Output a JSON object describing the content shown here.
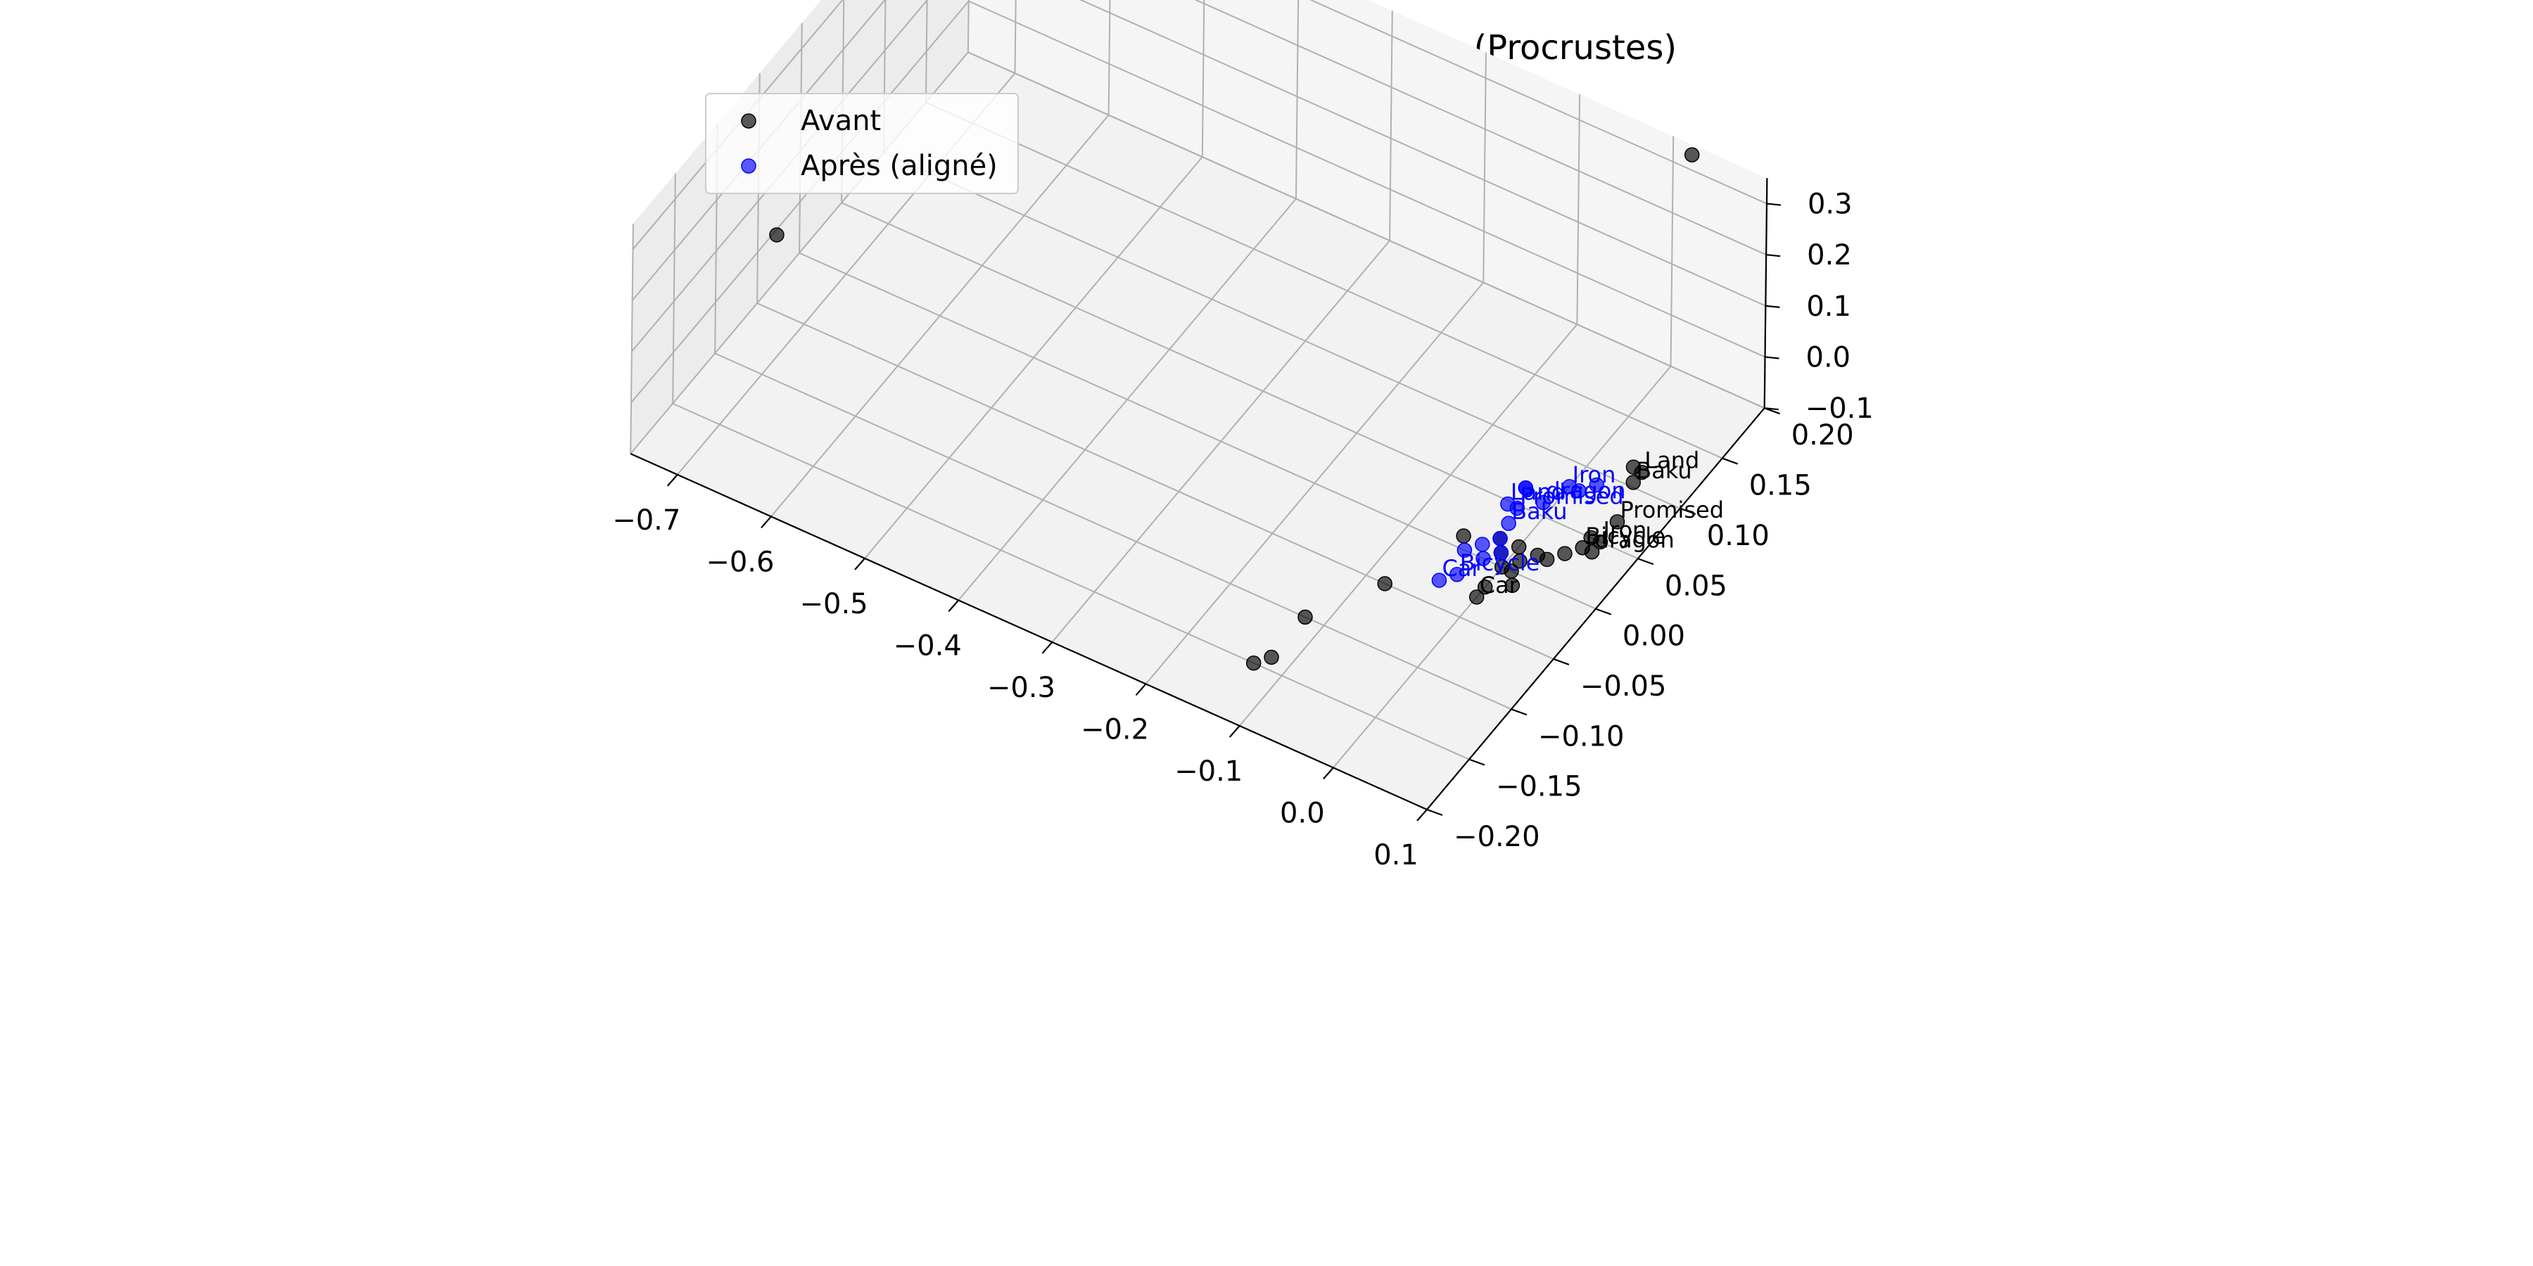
{
  "chart_data": {
    "type": "scatter",
    "projection": "3d",
    "title": "Comparaison globale des structures (Procrustes)",
    "xlabel": "",
    "ylabel": "",
    "zlabel": "",
    "xlim": [
      -0.75,
      0.1
    ],
    "ylim": [
      -0.2,
      0.2
    ],
    "zlim": [
      -0.1,
      0.35
    ],
    "x_ticks": [
      "−0.7",
      "−0.6",
      "−0.5",
      "−0.4",
      "−0.3",
      "−0.2",
      "−0.1",
      "0.0",
      "0.1"
    ],
    "y_ticks": [
      "−0.20",
      "−0.15",
      "−0.10",
      "−0.05",
      "0.00",
      "0.05",
      "0.10",
      "0.15",
      "0.20"
    ],
    "z_ticks": [
      "−0.1",
      "0.0",
      "0.1",
      "0.2",
      "0.3"
    ],
    "grid": true,
    "legend_position": "top-left",
    "series": [
      {
        "name": "Avant",
        "color": "#000000",
        "points": [
          {
            "x": 0.02,
            "y": 0.2,
            "z": 0.33,
            "label": ""
          },
          {
            "x": -0.73,
            "y": -0.05,
            "z": 0.05,
            "label": ""
          },
          {
            "x": 0.05,
            "y": 0.1,
            "z": -0.06,
            "label": ""
          },
          {
            "x": 0.05,
            "y": 0.11,
            "z": -0.09,
            "label": "Land"
          },
          {
            "x": 0.05,
            "y": 0.1,
            "z": -0.09,
            "label": "Baku"
          },
          {
            "x": 0.06,
            "y": 0.07,
            "z": -0.1,
            "label": "Promised"
          },
          {
            "x": 0.06,
            "y": 0.05,
            "z": -0.1,
            "label": "Iron"
          },
          {
            "x": 0.06,
            "y": 0.04,
            "z": -0.1,
            "label": "dragon"
          },
          {
            "x": 0.05,
            "y": 0.04,
            "z": -0.1,
            "label": "Bicycle"
          },
          {
            "x": 0.05,
            "y": 0.05,
            "z": -0.1,
            "label": ""
          },
          {
            "x": 0.04,
            "y": 0.03,
            "z": -0.1,
            "label": ""
          },
          {
            "x": 0.03,
            "y": 0.02,
            "z": -0.1,
            "label": ""
          },
          {
            "x": 0.02,
            "y": 0.02,
            "z": -0.1,
            "label": ""
          },
          {
            "x": 0.01,
            "y": 0.01,
            "z": -0.1,
            "label": ""
          },
          {
            "x": 0.0,
            "y": 0.02,
            "z": -0.1,
            "label": ""
          },
          {
            "x": 0.01,
            "y": 0.0,
            "z": -0.1,
            "label": ""
          },
          {
            "x": 0.0,
            "y": 0.0,
            "z": -0.1,
            "label": ""
          },
          {
            "x": -0.01,
            "y": 0.01,
            "z": -0.1,
            "label": ""
          },
          {
            "x": 0.02,
            "y": -0.01,
            "z": -0.1,
            "label": ""
          },
          {
            "x": 0.0,
            "y": -0.02,
            "z": -0.1,
            "label": ""
          },
          {
            "x": -0.02,
            "y": 0.02,
            "z": -0.1,
            "label": ""
          },
          {
            "x": -0.05,
            "y": 0.01,
            "z": -0.1,
            "label": ""
          },
          {
            "x": 0.0,
            "y": -0.03,
            "z": -0.1,
            "label": "Car"
          },
          {
            "x": -0.08,
            "y": -0.05,
            "z": -0.1,
            "label": ""
          },
          {
            "x": -0.12,
            "y": -0.1,
            "z": -0.1,
            "label": ""
          },
          {
            "x": -0.12,
            "y": -0.14,
            "z": -0.1,
            "label": ""
          },
          {
            "x": -0.13,
            "y": -0.15,
            "z": -0.1,
            "label": ""
          }
        ]
      },
      {
        "name": "Après (aligné)",
        "color": "#0000ff",
        "points": [
          {
            "x": -0.02,
            "y": 0.05,
            "z": -0.06,
            "label": ""
          },
          {
            "x": -0.02,
            "y": 0.05,
            "z": -0.06,
            "label": ""
          },
          {
            "x": -0.03,
            "y": 0.04,
            "z": -0.08,
            "label": "Land"
          },
          {
            "x": -0.02,
            "y": 0.04,
            "z": -0.08,
            "label": "Promised"
          },
          {
            "x": -0.02,
            "y": 0.03,
            "z": -0.09,
            "label": "Baku"
          },
          {
            "x": -0.01,
            "y": 0.06,
            "z": -0.1,
            "label": "dragon"
          },
          {
            "x": 0.0,
            "y": 0.08,
            "z": -0.1,
            "label": "Iron"
          },
          {
            "x": 0.02,
            "y": 0.09,
            "z": -0.1,
            "label": ""
          },
          {
            "x": 0.01,
            "y": 0.08,
            "z": -0.1,
            "label": ""
          },
          {
            "x": -0.02,
            "y": 0.02,
            "z": -0.1,
            "label": ""
          },
          {
            "x": -0.01,
            "y": 0.01,
            "z": -0.1,
            "label": ""
          },
          {
            "x": -0.03,
            "y": 0.01,
            "z": -0.1,
            "label": ""
          },
          {
            "x": -0.04,
            "y": 0.0,
            "z": -0.1,
            "label": ""
          },
          {
            "x": -0.02,
            "y": 0.0,
            "z": -0.1,
            "label": ""
          },
          {
            "x": -0.03,
            "y": -0.02,
            "z": -0.1,
            "label": "Bicycle"
          },
          {
            "x": -0.04,
            "y": -0.03,
            "z": -0.1,
            "label": "Car"
          }
        ]
      }
    ]
  }
}
